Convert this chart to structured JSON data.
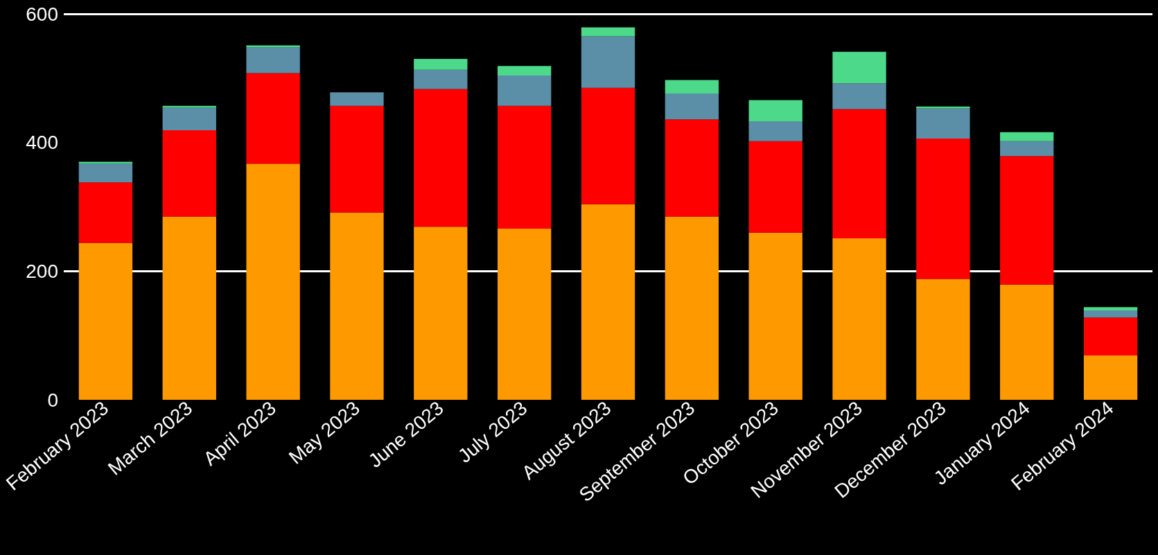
{
  "chart_data": {
    "type": "bar",
    "stacked": true,
    "categories": [
      "February 2023",
      "March 2023",
      "April 2023",
      "May 2023",
      "June 2023",
      "July 2023",
      "August 2023",
      "September 2023",
      "October 2023",
      "November 2023",
      "December 2023",
      "January 2024",
      "February 2024"
    ],
    "series": [
      {
        "color": "#ff9900",
        "values": [
          244,
          285,
          367,
          291,
          269,
          266,
          304,
          285,
          260,
          251,
          188,
          179,
          69
        ]
      },
      {
        "color": "#ff0000",
        "values": [
          94,
          134,
          141,
          166,
          214,
          191,
          181,
          151,
          142,
          201,
          218,
          200,
          59
        ]
      },
      {
        "color": "#5b8fa8",
        "values": [
          29,
          35,
          40,
          21,
          30,
          47,
          80,
          40,
          31,
          40,
          47,
          23,
          11
        ]
      },
      {
        "color": "#4cd98a",
        "values": [
          3,
          3,
          3,
          0,
          17,
          15,
          14,
          21,
          33,
          49,
          3,
          14,
          5
        ]
      }
    ],
    "ylim": [
      0,
      600
    ],
    "yticks": [
      0,
      200,
      400,
      600
    ],
    "grid": "y"
  }
}
